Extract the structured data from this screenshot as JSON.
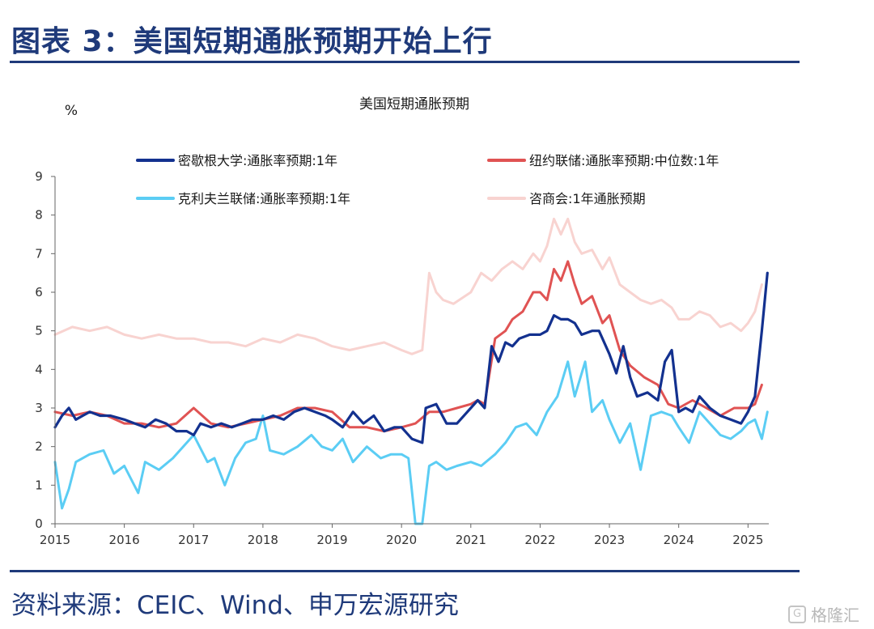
{
  "header": {
    "title": "图表 3：美国短期通胀预期开始上行"
  },
  "footer": {
    "source": "资料来源：CEIC、Wind、申万宏源研究",
    "watermark": "格隆汇"
  },
  "colors": {
    "accent": "#1f3a7a"
  },
  "chart_data": {
    "type": "line",
    "title": "美国短期通胀预期",
    "ylabel": "%",
    "xlabel": "",
    "ylim": [
      0,
      9
    ],
    "xlim": [
      2015.0,
      2025.3
    ],
    "yticks": [
      "0",
      "1",
      "2",
      "3",
      "4",
      "5",
      "6",
      "7",
      "8",
      "9"
    ],
    "xticks": [
      "2015",
      "2016",
      "2017",
      "2018",
      "2019",
      "2020",
      "2021",
      "2022",
      "2023",
      "2024",
      "2025"
    ],
    "grid": false,
    "legend": "top",
    "series": [
      {
        "name": "咨商会:1年通胀预期",
        "color": "#f8d3d0",
        "x": [
          2015.0,
          2015.25,
          2015.5,
          2015.75,
          2016.0,
          2016.25,
          2016.5,
          2016.75,
          2017.0,
          2017.25,
          2017.5,
          2017.75,
          2018.0,
          2018.25,
          2018.5,
          2018.75,
          2019.0,
          2019.25,
          2019.5,
          2019.75,
          2020.0,
          2020.15,
          2020.3,
          2020.4,
          2020.5,
          2020.6,
          2020.75,
          2021.0,
          2021.15,
          2021.3,
          2021.45,
          2021.6,
          2021.75,
          2021.9,
          2022.0,
          2022.1,
          2022.2,
          2022.3,
          2022.4,
          2022.5,
          2022.6,
          2022.75,
          2022.9,
          2023.0,
          2023.15,
          2023.3,
          2023.45,
          2023.6,
          2023.75,
          2023.9,
          2024.0,
          2024.15,
          2024.3,
          2024.45,
          2024.6,
          2024.75,
          2024.9,
          2025.0,
          2025.1,
          2025.2
        ],
        "y": [
          4.9,
          5.1,
          5.0,
          5.1,
          4.9,
          4.8,
          4.9,
          4.8,
          4.8,
          4.7,
          4.7,
          4.6,
          4.8,
          4.7,
          4.9,
          4.8,
          4.6,
          4.5,
          4.6,
          4.7,
          4.5,
          4.4,
          4.5,
          6.5,
          6.0,
          5.8,
          5.7,
          6.0,
          6.5,
          6.3,
          6.6,
          6.8,
          6.6,
          7.0,
          6.8,
          7.2,
          7.9,
          7.5,
          7.9,
          7.3,
          7.0,
          7.1,
          6.6,
          6.9,
          6.2,
          6.0,
          5.8,
          5.7,
          5.8,
          5.6,
          5.3,
          5.3,
          5.5,
          5.4,
          5.1,
          5.2,
          5.0,
          5.2,
          5.5,
          6.2
        ]
      },
      {
        "name": "克利夫兰联储:通胀率预期:1年",
        "color": "#5bcdf4",
        "x": [
          2015.0,
          2015.1,
          2015.2,
          2015.3,
          2015.5,
          2015.7,
          2015.85,
          2016.0,
          2016.2,
          2016.3,
          2016.5,
          2016.7,
          2016.85,
          2017.0,
          2017.2,
          2017.3,
          2017.45,
          2017.6,
          2017.75,
          2017.9,
          2018.0,
          2018.1,
          2018.3,
          2018.5,
          2018.7,
          2018.85,
          2019.0,
          2019.15,
          2019.3,
          2019.5,
          2019.7,
          2019.85,
          2020.0,
          2020.1,
          2020.2,
          2020.3,
          2020.4,
          2020.5,
          2020.65,
          2020.8,
          2021.0,
          2021.15,
          2021.35,
          2021.5,
          2021.65,
          2021.8,
          2021.95,
          2022.1,
          2022.25,
          2022.4,
          2022.5,
          2022.65,
          2022.75,
          2022.9,
          2023.0,
          2023.15,
          2023.3,
          2023.45,
          2023.6,
          2023.75,
          2023.9,
          2024.0,
          2024.15,
          2024.3,
          2024.45,
          2024.6,
          2024.75,
          2024.9,
          2025.0,
          2025.1,
          2025.2,
          2025.28
        ],
        "y": [
          1.6,
          0.4,
          0.9,
          1.6,
          1.8,
          1.9,
          1.3,
          1.5,
          0.8,
          1.6,
          1.4,
          1.7,
          2.0,
          2.3,
          1.6,
          1.7,
          1.0,
          1.7,
          2.1,
          2.2,
          2.8,
          1.9,
          1.8,
          2.0,
          2.3,
          2.0,
          1.9,
          2.2,
          1.6,
          2.0,
          1.7,
          1.8,
          1.8,
          1.7,
          0.0,
          0.0,
          1.5,
          1.6,
          1.4,
          1.5,
          1.6,
          1.5,
          1.8,
          2.1,
          2.5,
          2.6,
          2.3,
          2.9,
          3.3,
          4.2,
          3.3,
          4.2,
          2.9,
          3.2,
          2.7,
          2.1,
          2.6,
          1.4,
          2.8,
          2.9,
          2.8,
          2.5,
          2.1,
          2.9,
          2.6,
          2.3,
          2.2,
          2.4,
          2.6,
          2.7,
          2.2,
          2.9
        ]
      },
      {
        "name": "纽约联储:通胀率预期:中位数:1年",
        "color": "#e05353",
        "x": [
          2015.0,
          2015.25,
          2015.5,
          2015.75,
          2016.0,
          2016.25,
          2016.5,
          2016.75,
          2017.0,
          2017.25,
          2017.5,
          2017.75,
          2018.0,
          2018.25,
          2018.5,
          2018.75,
          2019.0,
          2019.25,
          2019.5,
          2019.75,
          2020.0,
          2020.2,
          2020.4,
          2020.6,
          2020.8,
          2021.0,
          2021.1,
          2021.2,
          2021.35,
          2021.5,
          2021.6,
          2021.75,
          2021.9,
          2022.0,
          2022.1,
          2022.2,
          2022.3,
          2022.4,
          2022.5,
          2022.6,
          2022.75,
          2022.9,
          2023.0,
          2023.15,
          2023.3,
          2023.5,
          2023.7,
          2023.85,
          2024.0,
          2024.2,
          2024.4,
          2024.6,
          2024.8,
          2025.0,
          2025.1,
          2025.2
        ],
        "y": [
          2.9,
          2.8,
          2.9,
          2.8,
          2.6,
          2.6,
          2.5,
          2.6,
          3.0,
          2.6,
          2.5,
          2.6,
          2.7,
          2.8,
          3.0,
          3.0,
          2.9,
          2.5,
          2.5,
          2.4,
          2.5,
          2.6,
          2.9,
          2.9,
          3.0,
          3.1,
          3.2,
          3.1,
          4.8,
          5.0,
          5.3,
          5.5,
          6.0,
          6.0,
          5.8,
          6.6,
          6.3,
          6.8,
          6.2,
          5.7,
          5.9,
          5.2,
          5.4,
          4.5,
          4.1,
          3.8,
          3.6,
          3.1,
          3.0,
          3.2,
          3.0,
          2.8,
          3.0,
          3.0,
          3.1,
          3.6
        ]
      },
      {
        "name": "密歇根大学:通胀率预期:1年",
        "color": "#13318f",
        "x": [
          2015.0,
          2015.1,
          2015.2,
          2015.3,
          2015.4,
          2015.5,
          2015.65,
          2015.8,
          2016.0,
          2016.15,
          2016.3,
          2016.45,
          2016.6,
          2016.75,
          2016.9,
          2017.0,
          2017.1,
          2017.25,
          2017.4,
          2017.55,
          2017.7,
          2017.85,
          2018.0,
          2018.15,
          2018.3,
          2018.45,
          2018.6,
          2018.75,
          2018.9,
          2019.0,
          2019.15,
          2019.3,
          2019.45,
          2019.6,
          2019.75,
          2019.9,
          2020.0,
          2020.15,
          2020.3,
          2020.35,
          2020.5,
          2020.65,
          2020.8,
          2021.0,
          2021.1,
          2021.2,
          2021.3,
          2021.4,
          2021.5,
          2021.6,
          2021.7,
          2021.85,
          2022.0,
          2022.1,
          2022.2,
          2022.3,
          2022.4,
          2022.5,
          2022.6,
          2022.75,
          2022.85,
          2023.0,
          2023.1,
          2023.2,
          2023.3,
          2023.4,
          2023.55,
          2023.7,
          2023.8,
          2023.9,
          2024.0,
          2024.1,
          2024.2,
          2024.3,
          2024.45,
          2024.6,
          2024.75,
          2024.9,
          2025.0,
          2025.1,
          2025.2,
          2025.28
        ],
        "y": [
          2.5,
          2.8,
          3.0,
          2.7,
          2.8,
          2.9,
          2.8,
          2.8,
          2.7,
          2.6,
          2.5,
          2.7,
          2.6,
          2.4,
          2.4,
          2.3,
          2.6,
          2.5,
          2.6,
          2.5,
          2.6,
          2.7,
          2.7,
          2.8,
          2.7,
          2.9,
          3.0,
          2.9,
          2.8,
          2.7,
          2.5,
          2.9,
          2.6,
          2.8,
          2.4,
          2.5,
          2.5,
          2.2,
          2.1,
          3.0,
          3.1,
          2.6,
          2.6,
          3.0,
          3.2,
          3.0,
          4.6,
          4.2,
          4.7,
          4.6,
          4.8,
          4.9,
          4.9,
          5.0,
          5.4,
          5.3,
          5.3,
          5.2,
          4.9,
          5.0,
          5.0,
          4.4,
          3.9,
          4.6,
          3.8,
          3.3,
          3.4,
          3.2,
          4.2,
          4.5,
          2.9,
          3.0,
          2.9,
          3.3,
          3.0,
          2.8,
          2.7,
          2.6,
          2.9,
          3.3,
          5.0,
          6.5
        ]
      }
    ]
  }
}
